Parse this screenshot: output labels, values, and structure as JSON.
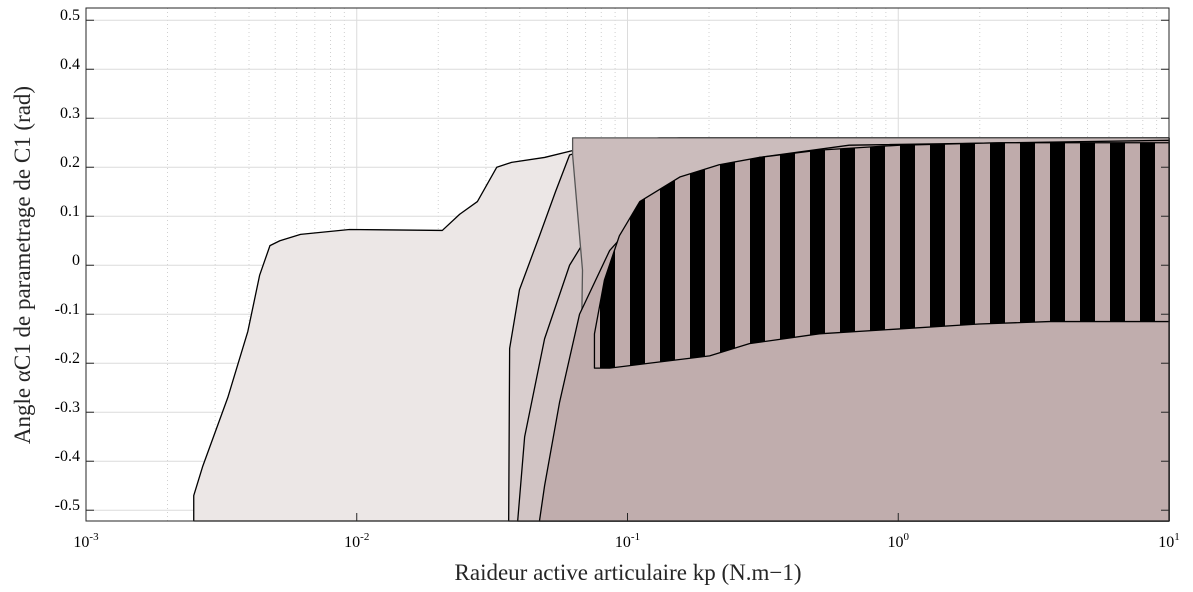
{
  "chart_data": {
    "type": "area",
    "x_label": "Raideur active articulaire kp (N.m−1)",
    "y_label": "Angle αC1 de parametrage de C1 (rad)",
    "xscale": "log",
    "xlim": [
      0.001,
      10
    ],
    "ylim": [
      -0.522,
      0.525
    ],
    "xticks": [
      {
        "value": 0.001,
        "label": "10",
        "exponent": "-3"
      },
      {
        "value": 0.01,
        "label": "10",
        "exponent": "-2"
      },
      {
        "value": 0.1,
        "label": "10",
        "exponent": "-1"
      },
      {
        "value": 1,
        "label": "10",
        "exponent": "0"
      },
      {
        "value": 10,
        "label": "10",
        "exponent": "1"
      }
    ],
    "xminorticks": [
      0.002,
      0.003,
      0.004,
      0.005,
      0.006,
      0.007,
      0.008,
      0.009,
      0.02,
      0.03,
      0.04,
      0.05,
      0.06,
      0.07,
      0.08,
      0.09,
      0.2,
      0.3,
      0.4,
      0.5,
      0.6,
      0.7,
      0.8,
      0.9,
      2,
      3,
      4,
      5,
      6,
      7,
      8,
      9
    ],
    "yticks": [
      0.5,
      0.4,
      0.3,
      0.2,
      0.1,
      0,
      -0.1,
      -0.2,
      -0.3,
      -0.4,
      -0.5
    ],
    "grid": true,
    "series": [
      {
        "color": "#ece7e6",
        "line": "#000000",
        "x": [
          0.0025,
          0.0025,
          0.0027,
          0.00334,
          0.00396,
          0.00438,
          0.00478,
          0.0052,
          0.0062,
          0.0094,
          0.0207,
          0.024,
          0.0279,
          0.0329,
          0.0373,
          0.0494,
          0.0637,
          0.0895,
          0.131,
          10,
          10
        ],
        "y": [
          -0.522,
          -0.47,
          -0.41,
          -0.27,
          -0.135,
          -0.02,
          0.04,
          0.05,
          0.063,
          0.073,
          0.071,
          0.104,
          0.13,
          0.2,
          0.21,
          0.22,
          0.235,
          0.25,
          0.26,
          0.26,
          -0.522
        ]
      },
      {
        "color": "#d9cece",
        "line": "#000000",
        "x": [
          0.0364,
          0.0367,
          0.0399,
          0.0473,
          0.0542,
          0.0611,
          0.0859,
          0.156,
          10,
          10
        ],
        "y": [
          -0.522,
          -0.17,
          -0.05,
          0.06,
          0.15,
          0.225,
          0.25,
          0.26,
          0.26,
          -0.522
        ]
      },
      {
        "color": "#d1c4c4",
        "line": "#000000",
        "x": [
          0.0393,
          0.0417,
          0.0494,
          0.0611,
          0.0789,
          0.111,
          0.185,
          0.432,
          10,
          10
        ],
        "y": [
          -0.522,
          -0.35,
          -0.15,
          0,
          0.1,
          0.18,
          0.23,
          0.255,
          0.26,
          -0.522
        ]
      },
      {
        "color": "#cbbcbc",
        "line": "#555555",
        "x": [
          0.0561,
          0.0561,
          0.0627,
          0.0637,
          0.0676,
          0.0682,
          0.0627,
          0.0627,
          10,
          10
        ],
        "y": [
          -0.522,
          -0.45,
          -0.41,
          -0.17,
          -0.15,
          -0.01,
          0.225,
          0.26,
          0.26,
          -0.522
        ]
      },
      {
        "color": "#c0adad",
        "line": "#000000",
        "x": [
          0.0473,
          0.0494,
          0.0561,
          0.0665,
          0.0859,
          0.12,
          0.185,
          0.307,
          0.659,
          10,
          10
        ],
        "y": [
          -0.522,
          -0.45,
          -0.28,
          -0.1,
          0.03,
          0.12,
          0.18,
          0.22,
          0.245,
          0.255,
          -0.522
        ]
      },
      {
        "color": "#000000",
        "line": "#000000",
        "hatch": "vertical",
        "x": [
          0.0755,
          0.0822,
          0.0933,
          0.111,
          0.156,
          0.218,
          0.307,
          0.511,
          1.01,
          2.36,
          10,
          10,
          3.61,
          1.99,
          1.01,
          0.511,
          0.282,
          0.201,
          0.12,
          0.0859,
          0.0755,
          0.0755
        ],
        "y": [
          -0.14,
          -0.03,
          0.06,
          0.13,
          0.18,
          0.205,
          0.22,
          0.235,
          0.245,
          0.25,
          0.25,
          -0.115,
          -0.115,
          -0.12,
          -0.13,
          -0.14,
          -0.16,
          -0.185,
          -0.2,
          -0.21,
          -0.21,
          -0.14
        ]
      }
    ]
  }
}
